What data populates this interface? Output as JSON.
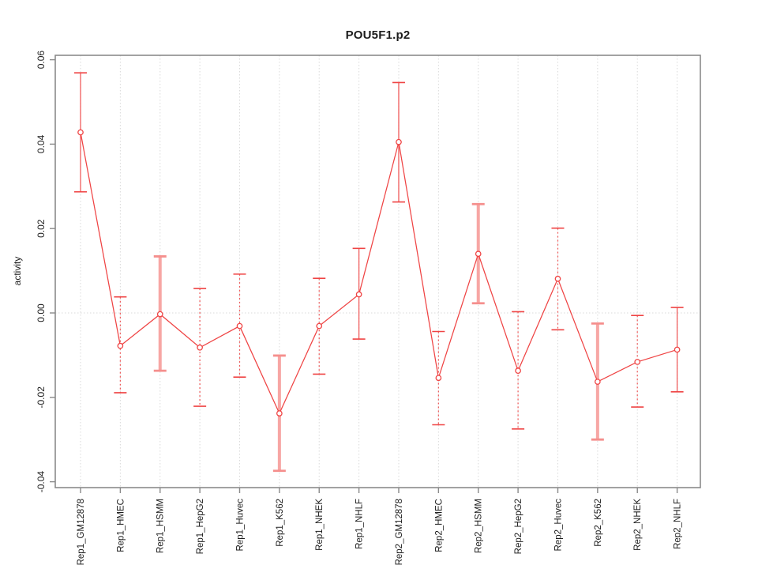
{
  "window": {
    "background": "#ffffff"
  },
  "chart_data": {
    "type": "line",
    "title": "POU5F1.p2",
    "xlabel": "",
    "ylabel": "activity",
    "ylim": [
      -0.0414,
      0.0611
    ],
    "yticks": [
      0.06,
      0.04,
      0.02,
      0.0,
      -0.02,
      -0.04
    ],
    "ytick_labels": [
      "0.06",
      "0.04",
      "0.02",
      "0.00",
      "-0.02",
      "-0.04"
    ],
    "grid": true,
    "legend_position": "none",
    "marker": "open-circle",
    "series_name": "activity",
    "categories": [
      "Rep1_GM12878",
      "Rep1_HMEC",
      "Rep1_HSMM",
      "Rep1_HepG2",
      "Rep1_Huvec",
      "Rep1_K562",
      "Rep1_NHEK",
      "Rep1_NHLF",
      "Rep2_GM12878",
      "Rep2_HMEC",
      "Rep2_HSMM",
      "Rep2_HepG2",
      "Rep2_Huvec",
      "Rep2_K562",
      "Rep2_NHEK",
      "Rep2_NHLF"
    ],
    "values": [
      0.0428,
      -0.0078,
      -0.0003,
      -0.0082,
      -0.0031,
      -0.0238,
      -0.0031,
      0.0044,
      0.0405,
      -0.0154,
      0.014,
      -0.0137,
      0.0081,
      -0.0163,
      -0.0116,
      -0.0087
    ],
    "error_low": [
      0.0287,
      -0.0189,
      -0.0137,
      -0.0221,
      -0.0152,
      -0.0374,
      -0.0145,
      -0.0062,
      0.0263,
      -0.0265,
      0.0023,
      -0.0275,
      -0.004,
      -0.03,
      -0.0223,
      -0.0187
    ],
    "error_high": [
      0.0569,
      0.0038,
      0.0134,
      0.0058,
      0.0092,
      -0.0101,
      0.0082,
      0.0153,
      0.0546,
      -0.0044,
      0.0258,
      0.0003,
      0.0201,
      -0.0025,
      -0.0006,
      0.0013
    ],
    "error_bar_style": [
      "solid",
      "dashed",
      "thick",
      "dashed",
      "dashed",
      "thick",
      "dashed",
      "solid",
      "solid",
      "dashed",
      "thick",
      "dashed",
      "dashed",
      "thick",
      "dashed",
      "solid"
    ]
  },
  "colors": {
    "accent": "#ef4444",
    "thick_bar": "#f7a6a4",
    "thick_cap": "#f58f8d",
    "grid": "#dadada",
    "box": "#8a8a8a",
    "text": "#1c1c1c",
    "marker_fill": "#ffffff"
  }
}
